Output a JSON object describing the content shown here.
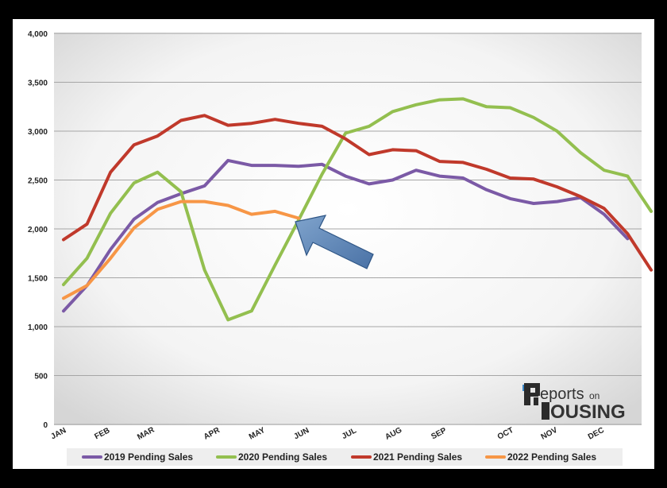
{
  "chart_data": {
    "type": "line",
    "title": "",
    "xlabel": "",
    "ylabel": "",
    "ylim": [
      0,
      4000
    ],
    "yticks": [
      "0",
      "500",
      "1,000",
      "1,500",
      "2,000",
      "2,500",
      "3,000",
      "3,500",
      "4,000"
    ],
    "month_labels": [
      "JAN",
      "FEB",
      "MAR",
      "APR",
      "MAY",
      "JUN",
      "JUL",
      "AUG",
      "SEP",
      "OCT",
      "NOV",
      "DEC"
    ],
    "grid": true,
    "legend": "bottom",
    "series": [
      {
        "name": "2019 Pending Sales",
        "color": "#7b5aa6",
        "values": [
          1160,
          1420,
          1790,
          2100,
          2270,
          2360,
          2440,
          2700,
          2650,
          2650,
          2640,
          2660,
          2540,
          2460,
          2500,
          2600,
          2540,
          2520,
          2400,
          2310,
          2260,
          2280,
          2320,
          2150,
          1900
        ]
      },
      {
        "name": "2020 Pending Sales",
        "color": "#93bf4f",
        "values": [
          1430,
          1700,
          2160,
          2470,
          2580,
          2380,
          1580,
          1070,
          1160,
          1630,
          2090,
          2560,
          2980,
          3050,
          3200,
          3270,
          3320,
          3330,
          3250,
          3240,
          3140,
          3000,
          2780,
          2600,
          2540,
          2180
        ]
      },
      {
        "name": "2021 Pending Sales",
        "color": "#c0392b",
        "values": [
          1890,
          2050,
          2580,
          2860,
          2950,
          3110,
          3160,
          3060,
          3080,
          3120,
          3080,
          3050,
          2920,
          2760,
          2810,
          2800,
          2690,
          2680,
          2610,
          2520,
          2510,
          2430,
          2330,
          2210,
          1950,
          1580
        ]
      },
      {
        "name": "2022 Pending Sales",
        "color": "#f79646",
        "values": [
          1290,
          1420,
          1700,
          2010,
          2200,
          2280,
          2280,
          2240,
          2150,
          2180,
          2110
        ]
      }
    ]
  },
  "logo": {
    "line1": "eports",
    "line2": "on",
    "line3": "OUSING"
  }
}
